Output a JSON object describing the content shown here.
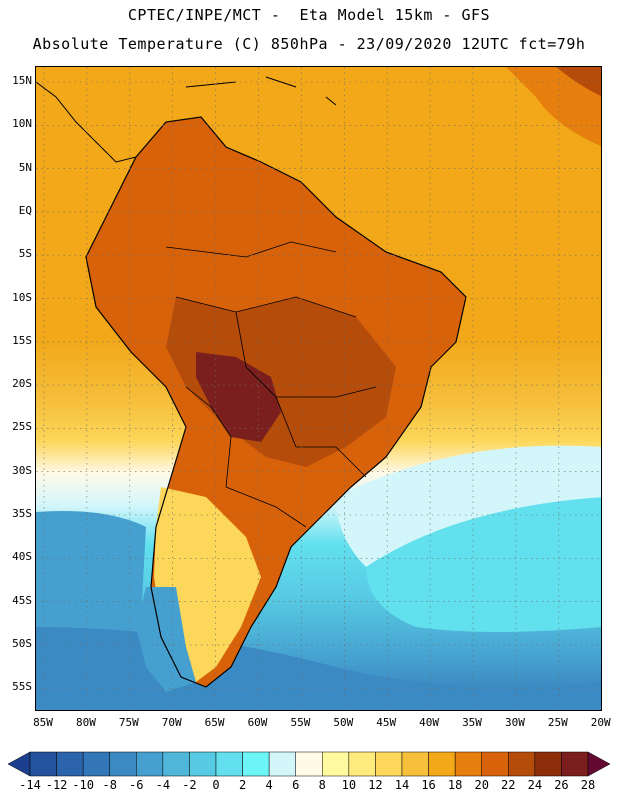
{
  "header": {
    "line1": "CPTEC/INPE/MCT -  Eta Model 15km - GFS",
    "line2": "Absolute Temperature (C) 850hPa - 23/09/2020 12UTC fct=79h"
  },
  "axes": {
    "lat_labels": [
      "15N",
      "10N",
      "5N",
      "EQ",
      "5S",
      "10S",
      "15S",
      "20S",
      "25S",
      "30S",
      "35S",
      "40S",
      "45S",
      "50S",
      "55S"
    ],
    "lon_labels": [
      "85W",
      "80W",
      "75W",
      "70W",
      "65W",
      "60W",
      "55W",
      "50W",
      "45W",
      "40W",
      "35W",
      "30W",
      "25W",
      "20W"
    ]
  },
  "colorbar": {
    "unit": "C",
    "labels": [
      "-14",
      "-12",
      "-10",
      "-8",
      "-6",
      "-4",
      "-2",
      "0",
      "2",
      "4",
      "6",
      "8",
      "10",
      "12",
      "14",
      "16",
      "18",
      "20",
      "22",
      "24",
      "26",
      "28"
    ],
    "colors": [
      "#1c3f8e",
      "#24529c",
      "#2c64ab",
      "#3477b8",
      "#3c8ac4",
      "#45a0cf",
      "#4fb6da",
      "#58cbe4",
      "#62e0ee",
      "#6cf5f7",
      "#d3f6fb",
      "#fff9e8",
      "#fffaa0",
      "#feeb7e",
      "#fcd75a",
      "#f6bf3c",
      "#f2a818",
      "#e67f0d",
      "#d7620a",
      "#b64c0a",
      "#8d2e0a",
      "#7a1e1e",
      "#640a32"
    ]
  }
}
